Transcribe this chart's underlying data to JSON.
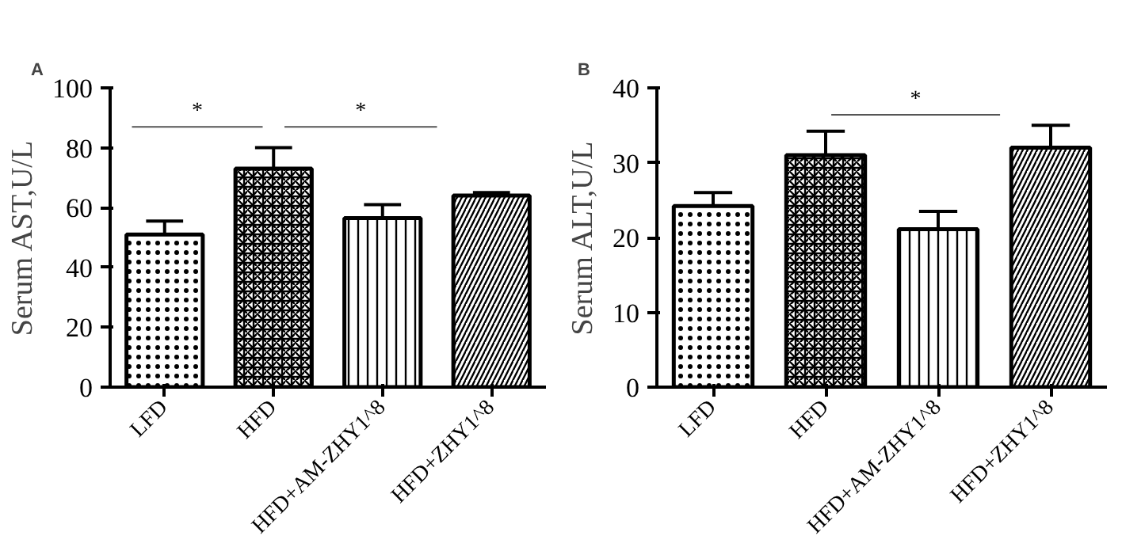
{
  "chart_data": [
    {
      "type": "bar",
      "title": "A",
      "ylabel": "Serum AST,U/L",
      "categories": [
        "LFD",
        "HFD",
        "HFD+AM-ZHY1^8",
        "HFD+ZHY1^8"
      ],
      "values": [
        51,
        73,
        56.5,
        64
      ],
      "errors": [
        4.5,
        7,
        4.5,
        1
      ],
      "colors": [
        "#000000",
        "#000000",
        "#000000",
        "#000000"
      ],
      "ylim": [
        0,
        100
      ],
      "yticks": [
        0,
        20,
        40,
        60,
        80,
        100
      ],
      "grid": false,
      "annotations": [
        "*",
        "*"
      ]
    },
    {
      "type": "bar",
      "title": "B",
      "ylabel": "Serum ALT,U/L",
      "categories": [
        "LFD",
        "HFD",
        "HFD+AM-ZHY1^8",
        "HFD+ZHY1^8"
      ],
      "values": [
        24.2,
        31,
        21.1,
        32
      ],
      "errors": [
        1.8,
        3.2,
        2.4,
        3
      ],
      "colors": [
        "#000000",
        "#000000",
        "#000000",
        "#000000"
      ],
      "ylim": [
        0,
        40
      ],
      "yticks": [
        0,
        10,
        20,
        30,
        40
      ],
      "grid": false,
      "annotations": [
        "*"
      ]
    }
  ]
}
